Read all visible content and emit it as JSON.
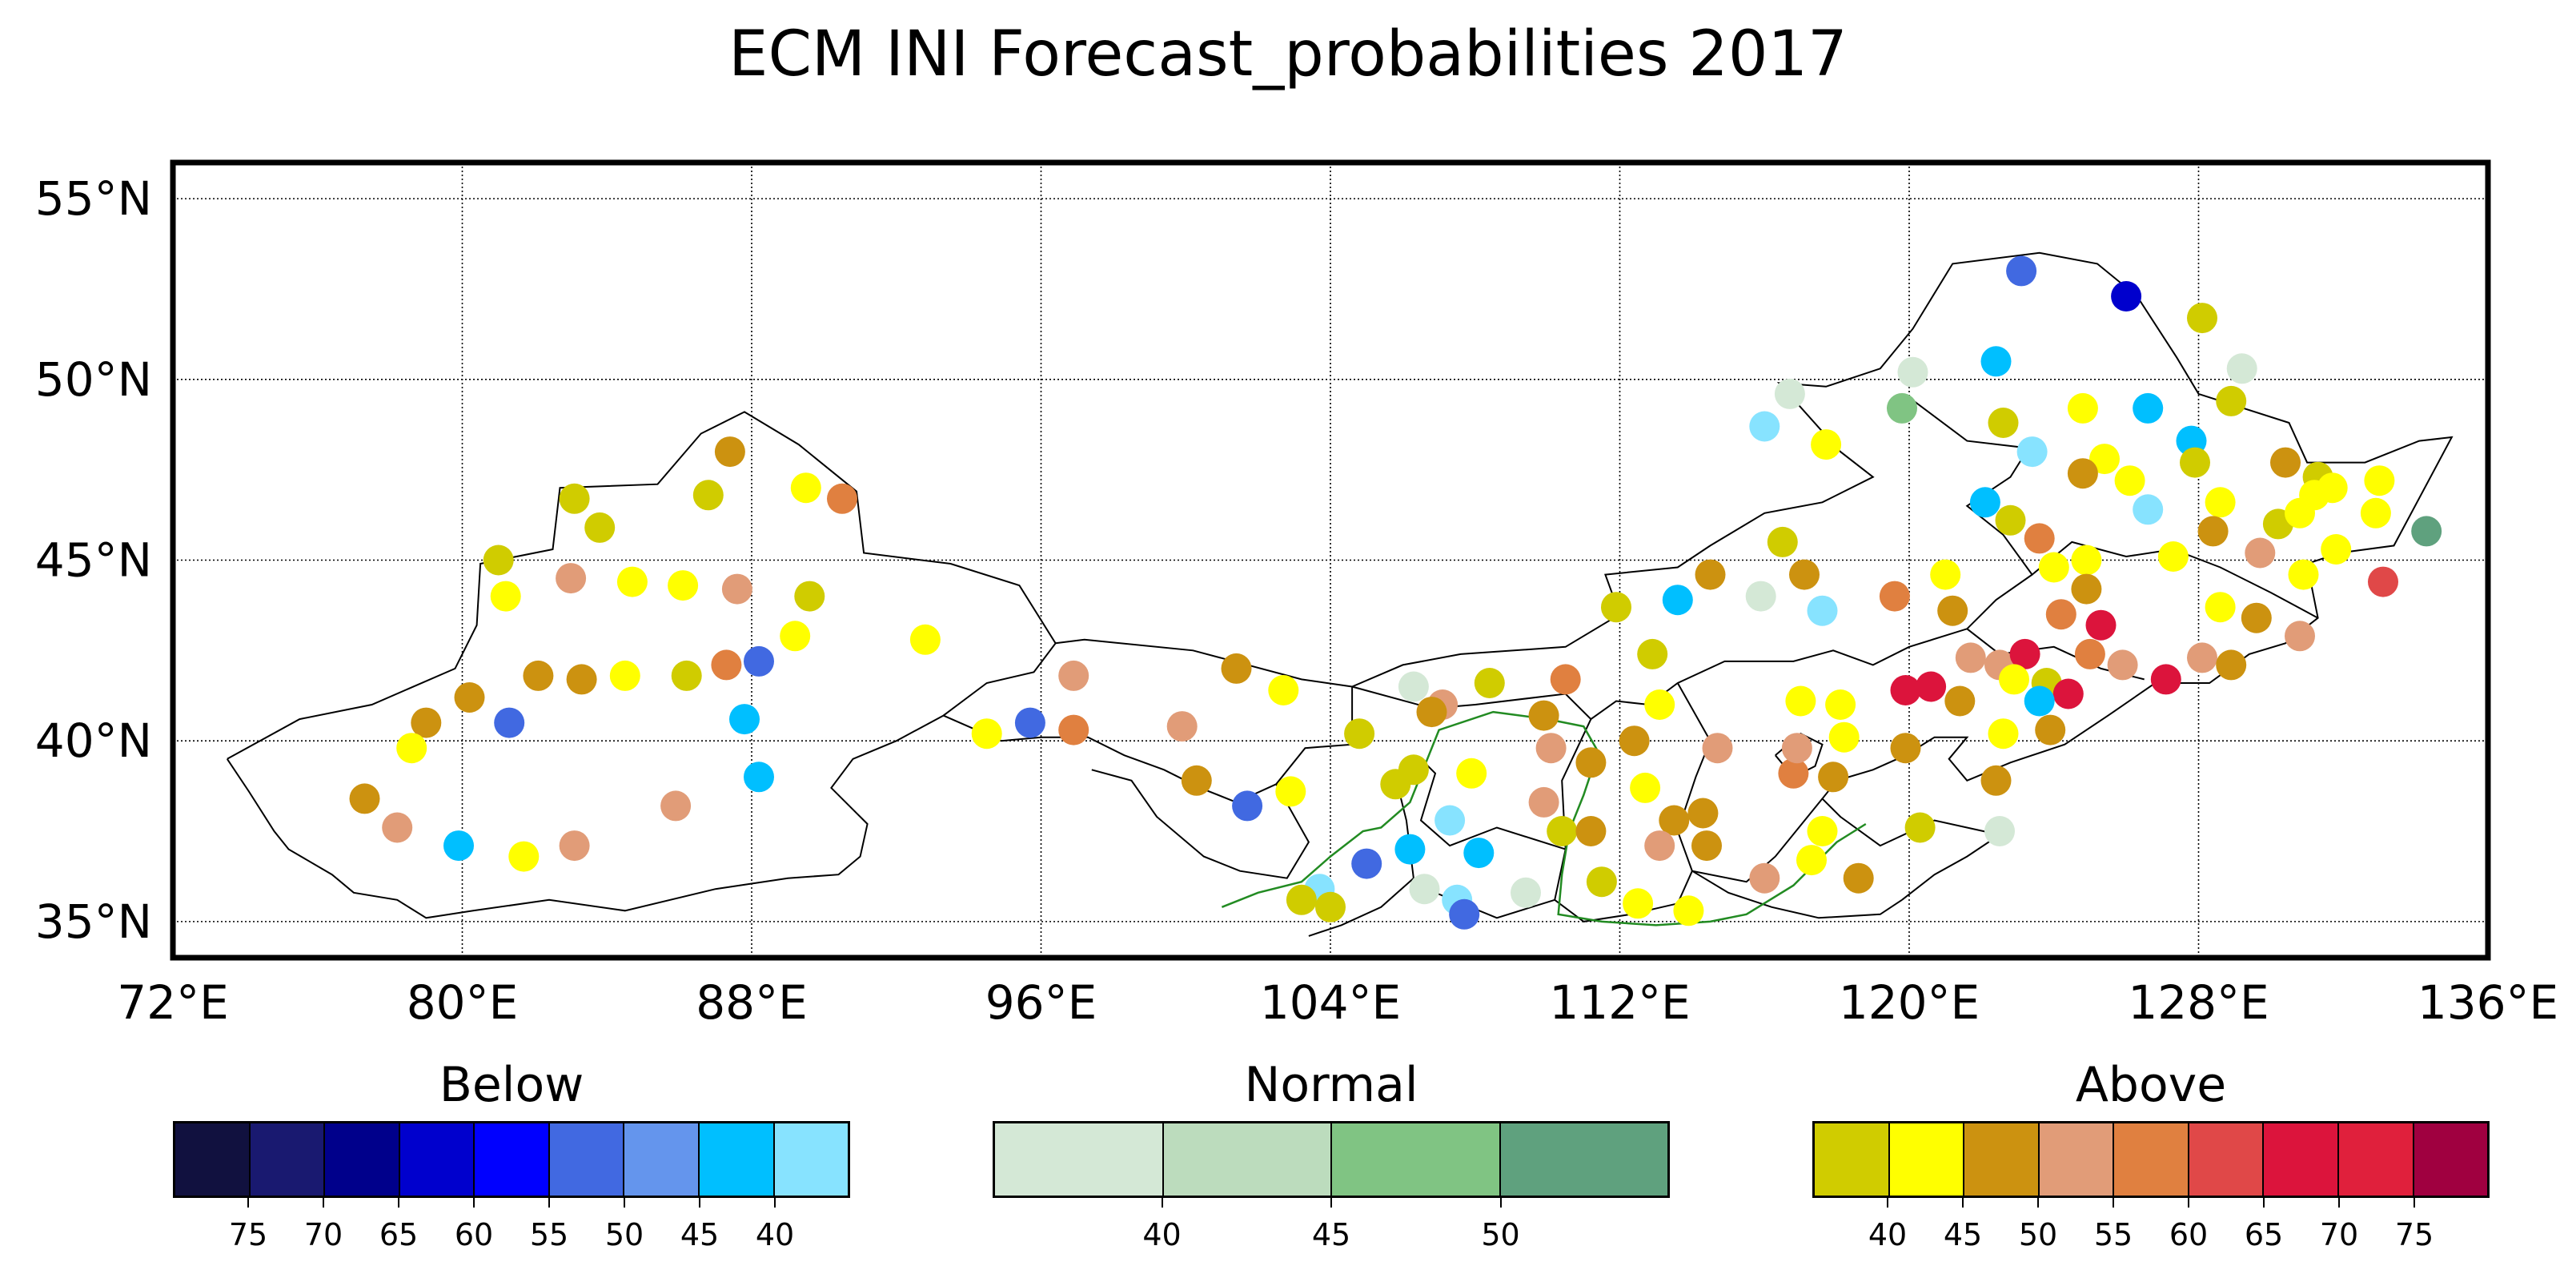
{
  "title": "ECM INI Forecast_probabilities 2017",
  "map": {
    "lon_range": [
      72,
      136
    ],
    "lat_range": [
      34,
      56
    ],
    "lon_ticks": [
      "72°E",
      "80°E",
      "88°E",
      "96°E",
      "104°E",
      "112°E",
      "120°E",
      "128°E",
      "136°E"
    ],
    "lat_ticks": [
      "35°N",
      "40°N",
      "45°N",
      "50°N",
      "55°N"
    ],
    "gridlines": true,
    "river_color": "#228b22"
  },
  "legend": {
    "below": {
      "title": "Below",
      "colors": [
        "#11113f",
        "#191970",
        "#00008b",
        "#0000cd",
        "#0000ff",
        "#4169e1",
        "#6495ed",
        "#00bfff",
        "#87e3ff"
      ],
      "ticks": [
        "75",
        "70",
        "65",
        "60",
        "55",
        "50",
        "45",
        "40"
      ]
    },
    "normal": {
      "title": "Normal",
      "colors": [
        "#d4e8d6",
        "#bcdcbd",
        "#80c483",
        "#5fa17e"
      ],
      "ticks": [
        "40",
        "45",
        "50"
      ]
    },
    "above": {
      "title": "Above",
      "colors": [
        "#d0cc00",
        "#ffff00",
        "#cc9210",
        "#e19c78",
        "#e08040",
        "#e04848",
        "#dc143c",
        "#e0203c",
        "#a00040"
      ],
      "ticks": [
        "40",
        "45",
        "50",
        "55",
        "60",
        "65",
        "70",
        "75"
      ]
    }
  },
  "stations": [
    {
      "lon": 123.1,
      "lat": 53.0,
      "c": "#4169e1"
    },
    {
      "lon": 126.0,
      "lat": 52.3,
      "c": "#0000cd"
    },
    {
      "lon": 128.1,
      "lat": 51.7,
      "c": "#d0cc00"
    },
    {
      "lon": 129.2,
      "lat": 50.3,
      "c": "#d4e8d6"
    },
    {
      "lon": 120.1,
      "lat": 50.2,
      "c": "#d4e8d6"
    },
    {
      "lon": 122.4,
      "lat": 50.5,
      "c": "#00bfff"
    },
    {
      "lon": 116.7,
      "lat": 49.6,
      "c": "#d4e8d6"
    },
    {
      "lon": 119.8,
      "lat": 49.2,
      "c": "#80c483"
    },
    {
      "lon": 124.8,
      "lat": 49.2,
      "c": "#ffff00"
    },
    {
      "lon": 126.6,
      "lat": 49.2,
      "c": "#00bfff"
    },
    {
      "lon": 128.9,
      "lat": 49.4,
      "c": "#d0cc00"
    },
    {
      "lon": 116.0,
      "lat": 48.7,
      "c": "#87e3ff"
    },
    {
      "lon": 117.7,
      "lat": 48.2,
      "c": "#ffff00"
    },
    {
      "lon": 122.6,
      "lat": 48.8,
      "c": "#d0cc00"
    },
    {
      "lon": 123.4,
      "lat": 48.0,
      "c": "#87e3ff"
    },
    {
      "lon": 125.4,
      "lat": 47.8,
      "c": "#ffff00"
    },
    {
      "lon": 127.8,
      "lat": 48.3,
      "c": "#00bfff"
    },
    {
      "lon": 130.4,
      "lat": 47.7,
      "c": "#cc9210"
    },
    {
      "lon": 124.8,
      "lat": 47.4,
      "c": "#cc9210"
    },
    {
      "lon": 126.1,
      "lat": 47.2,
      "c": "#ffff00"
    },
    {
      "lon": 131.3,
      "lat": 47.3,
      "c": "#d0cc00"
    },
    {
      "lon": 133.0,
      "lat": 47.2,
      "c": "#ffff00"
    },
    {
      "lon": 122.1,
      "lat": 46.6,
      "c": "#00bfff"
    },
    {
      "lon": 126.6,
      "lat": 46.4,
      "c": "#87e3ff"
    },
    {
      "lon": 128.6,
      "lat": 46.6,
      "c": "#ffff00"
    },
    {
      "lon": 131.2,
      "lat": 46.8,
      "c": "#ffff00"
    },
    {
      "lon": 132.9,
      "lat": 46.3,
      "c": "#ffff00"
    },
    {
      "lon": 122.8,
      "lat": 46.1,
      "c": "#d0cc00"
    },
    {
      "lon": 123.6,
      "lat": 45.6,
      "c": "#e08040"
    },
    {
      "lon": 128.4,
      "lat": 45.8,
      "c": "#cc9210"
    },
    {
      "lon": 130.2,
      "lat": 46.0,
      "c": "#d0cc00"
    },
    {
      "lon": 130.8,
      "lat": 46.3,
      "c": "#ffff00"
    },
    {
      "lon": 134.3,
      "lat": 45.8,
      "c": "#5fa17e"
    },
    {
      "lon": 124.9,
      "lat": 45.0,
      "c": "#ffff00"
    },
    {
      "lon": 127.3,
      "lat": 45.1,
      "c": "#ffff00"
    },
    {
      "lon": 129.7,
      "lat": 45.2,
      "c": "#e19c78"
    },
    {
      "lon": 131.8,
      "lat": 45.3,
      "c": "#ffff00"
    },
    {
      "lon": 121.0,
      "lat": 44.6,
      "c": "#ffff00"
    },
    {
      "lon": 130.9,
      "lat": 44.6,
      "c": "#ffff00"
    },
    {
      "lon": 133.1,
      "lat": 44.4,
      "c": "#e04848"
    },
    {
      "lon": 124.9,
      "lat": 44.2,
      "c": "#cc9210"
    },
    {
      "lon": 119.6,
      "lat": 44.0,
      "c": "#e08040"
    },
    {
      "lon": 121.2,
      "lat": 43.6,
      "c": "#cc9210"
    },
    {
      "lon": 124.2,
      "lat": 43.5,
      "c": "#e08040"
    },
    {
      "lon": 125.3,
      "lat": 43.2,
      "c": "#dc143c"
    },
    {
      "lon": 128.6,
      "lat": 43.7,
      "c": "#ffff00"
    },
    {
      "lon": 129.6,
      "lat": 43.4,
      "c": "#cc9210"
    },
    {
      "lon": 130.8,
      "lat": 42.9,
      "c": "#e19c78"
    },
    {
      "lon": 121.7,
      "lat": 42.3,
      "c": "#e19c78"
    },
    {
      "lon": 122.5,
      "lat": 42.1,
      "c": "#e19c78"
    },
    {
      "lon": 123.2,
      "lat": 42.4,
      "c": "#dc143c"
    },
    {
      "lon": 125.0,
      "lat": 42.4,
      "c": "#e08040"
    },
    {
      "lon": 125.9,
      "lat": 42.1,
      "c": "#e19c78"
    },
    {
      "lon": 127.1,
      "lat": 41.7,
      "c": "#dc143c"
    },
    {
      "lon": 128.1,
      "lat": 42.3,
      "c": "#e19c78"
    },
    {
      "lon": 128.9,
      "lat": 42.1,
      "c": "#cc9210"
    },
    {
      "lon": 119.9,
      "lat": 41.4,
      "c": "#dc143c"
    },
    {
      "lon": 120.6,
      "lat": 41.5,
      "c": "#dc143c"
    },
    {
      "lon": 121.4,
      "lat": 41.1,
      "c": "#cc9210"
    },
    {
      "lon": 122.9,
      "lat": 41.7,
      "c": "#ffff00"
    },
    {
      "lon": 123.8,
      "lat": 41.6,
      "c": "#d0cc00"
    },
    {
      "lon": 124.4,
      "lat": 41.3,
      "c": "#dc143c"
    },
    {
      "lon": 123.6,
      "lat": 41.1,
      "c": "#00bfff"
    },
    {
      "lon": 122.6,
      "lat": 40.2,
      "c": "#ffff00"
    },
    {
      "lon": 123.9,
      "lat": 40.3,
      "c": "#cc9210"
    },
    {
      "lon": 119.9,
      "lat": 39.8,
      "c": "#cc9210"
    },
    {
      "lon": 122.4,
      "lat": 38.9,
      "c": "#cc9210"
    },
    {
      "lon": 120.3,
      "lat": 37.6,
      "c": "#d0cc00"
    },
    {
      "lon": 122.5,
      "lat": 37.5,
      "c": "#d4e8d6"
    },
    {
      "lon": 116.0,
      "lat": 36.2,
      "c": "#e19c78"
    },
    {
      "lon": 117.3,
      "lat": 36.7,
      "c": "#ffff00"
    },
    {
      "lon": 118.6,
      "lat": 36.2,
      "c": "#cc9210"
    },
    {
      "lon": 117.6,
      "lat": 37.5,
      "c": "#ffff00"
    },
    {
      "lon": 116.8,
      "lat": 39.1,
      "c": "#e08040"
    },
    {
      "lon": 116.9,
      "lat": 39.8,
      "c": "#e19c78"
    },
    {
      "lon": 117.9,
      "lat": 39.0,
      "c": "#cc9210"
    },
    {
      "lon": 118.2,
      "lat": 40.1,
      "c": "#ffff00"
    },
    {
      "lon": 117.0,
      "lat": 41.1,
      "c": "#ffff00"
    },
    {
      "lon": 118.1,
      "lat": 41.0,
      "c": "#ffff00"
    },
    {
      "lon": 117.6,
      "lat": 43.6,
      "c": "#87e3ff"
    },
    {
      "lon": 115.9,
      "lat": 44.0,
      "c": "#d4e8d6"
    },
    {
      "lon": 117.1,
      "lat": 44.6,
      "c": "#cc9210"
    },
    {
      "lon": 116.5,
      "lat": 45.5,
      "c": "#d0cc00"
    },
    {
      "lon": 114.5,
      "lat": 44.6,
      "c": "#cc9210"
    },
    {
      "lon": 113.6,
      "lat": 43.9,
      "c": "#00bfff"
    },
    {
      "lon": 111.9,
      "lat": 43.7,
      "c": "#d0cc00"
    },
    {
      "lon": 112.9,
      "lat": 42.4,
      "c": "#d0cc00"
    },
    {
      "lon": 113.1,
      "lat": 41.0,
      "c": "#ffff00"
    },
    {
      "lon": 112.4,
      "lat": 40.0,
      "c": "#cc9210"
    },
    {
      "lon": 114.7,
      "lat": 39.8,
      "c": "#e19c78"
    },
    {
      "lon": 110.5,
      "lat": 41.7,
      "c": "#e08040"
    },
    {
      "lon": 109.9,
      "lat": 40.7,
      "c": "#cc9210"
    },
    {
      "lon": 110.1,
      "lat": 39.8,
      "c": "#e19c78"
    },
    {
      "lon": 111.2,
      "lat": 39.4,
      "c": "#cc9210"
    },
    {
      "lon": 112.7,
      "lat": 38.7,
      "c": "#ffff00"
    },
    {
      "lon": 109.9,
      "lat": 38.3,
      "c": "#e19c78"
    },
    {
      "lon": 110.4,
      "lat": 37.5,
      "c": "#d0cc00"
    },
    {
      "lon": 111.2,
      "lat": 37.5,
      "c": "#cc9210"
    },
    {
      "lon": 113.5,
      "lat": 37.8,
      "c": "#cc9210"
    },
    {
      "lon": 114.3,
      "lat": 38.0,
      "c": "#cc9210"
    },
    {
      "lon": 113.1,
      "lat": 37.1,
      "c": "#e19c78"
    },
    {
      "lon": 114.4,
      "lat": 37.1,
      "c": "#cc9210"
    },
    {
      "lon": 111.5,
      "lat": 36.1,
      "c": "#d0cc00"
    },
    {
      "lon": 112.5,
      "lat": 35.5,
      "c": "#ffff00"
    },
    {
      "lon": 113.9,
      "lat": 35.3,
      "c": "#ffff00"
    },
    {
      "lon": 109.4,
      "lat": 35.8,
      "c": "#d4e8d6"
    },
    {
      "lon": 108.4,
      "lat": 41.6,
      "c": "#d0cc00"
    },
    {
      "lon": 107.1,
      "lat": 41.0,
      "c": "#e19c78"
    },
    {
      "lon": 106.8,
      "lat": 40.8,
      "c": "#cc9210"
    },
    {
      "lon": 106.3,
      "lat": 41.5,
      "c": "#d4e8d6"
    },
    {
      "lon": 104.8,
      "lat": 40.2,
      "c": "#d0cc00"
    },
    {
      "lon": 106.3,
      "lat": 39.2,
      "c": "#d0cc00"
    },
    {
      "lon": 105.8,
      "lat": 38.8,
      "c": "#d0cc00"
    },
    {
      "lon": 107.9,
      "lat": 39.1,
      "c": "#ffff00"
    },
    {
      "lon": 107.3,
      "lat": 37.8,
      "c": "#87e3ff"
    },
    {
      "lon": 108.1,
      "lat": 36.9,
      "c": "#00bfff"
    },
    {
      "lon": 106.2,
      "lat": 37.0,
      "c": "#00bfff"
    },
    {
      "lon": 105.0,
      "lat": 36.6,
      "c": "#4169e1"
    },
    {
      "lon": 106.6,
      "lat": 35.9,
      "c": "#d4e8d6"
    },
    {
      "lon": 103.7,
      "lat": 35.9,
      "c": "#87e3ff"
    },
    {
      "lon": 103.2,
      "lat": 35.6,
      "c": "#d0cc00"
    },
    {
      "lon": 104.0,
      "lat": 35.4,
      "c": "#d0cc00"
    },
    {
      "lon": 107.5,
      "lat": 35.6,
      "c": "#87e3ff"
    },
    {
      "lon": 107.7,
      "lat": 35.2,
      "c": "#4169e1"
    },
    {
      "lon": 102.9,
      "lat": 38.6,
      "c": "#ffff00"
    },
    {
      "lon": 101.7,
      "lat": 38.2,
      "c": "#4169e1"
    },
    {
      "lon": 100.3,
      "lat": 38.9,
      "c": "#cc9210"
    },
    {
      "lon": 101.4,
      "lat": 42.0,
      "c": "#cc9210"
    },
    {
      "lon": 102.7,
      "lat": 41.4,
      "c": "#ffff00"
    },
    {
      "lon": 99.9,
      "lat": 40.4,
      "c": "#e19c78"
    },
    {
      "lon": 96.9,
      "lat": 41.8,
      "c": "#e19c78"
    },
    {
      "lon": 96.9,
      "lat": 40.3,
      "c": "#e08040"
    },
    {
      "lon": 95.7,
      "lat": 40.5,
      "c": "#4169e1"
    },
    {
      "lon": 94.5,
      "lat": 40.2,
      "c": "#ffff00"
    },
    {
      "lon": 92.8,
      "lat": 42.8,
      "c": "#ffff00"
    },
    {
      "lon": 89.5,
      "lat": 47.0,
      "c": "#ffff00"
    },
    {
      "lon": 90.5,
      "lat": 46.7,
      "c": "#e08040"
    },
    {
      "lon": 87.4,
      "lat": 48.0,
      "c": "#cc9210"
    },
    {
      "lon": 86.8,
      "lat": 46.8,
      "c": "#d0cc00"
    },
    {
      "lon": 83.1,
      "lat": 46.7,
      "c": "#d0cc00"
    },
    {
      "lon": 83.8,
      "lat": 45.9,
      "c": "#d0cc00"
    },
    {
      "lon": 81.0,
      "lat": 45.0,
      "c": "#d0cc00"
    },
    {
      "lon": 81.2,
      "lat": 44.0,
      "c": "#ffff00"
    },
    {
      "lon": 83.0,
      "lat": 44.5,
      "c": "#e19c78"
    },
    {
      "lon": 84.7,
      "lat": 44.4,
      "c": "#ffff00"
    },
    {
      "lon": 86.1,
      "lat": 44.3,
      "c": "#ffff00"
    },
    {
      "lon": 87.6,
      "lat": 44.2,
      "c": "#e19c78"
    },
    {
      "lon": 89.6,
      "lat": 44.0,
      "c": "#d0cc00"
    },
    {
      "lon": 89.2,
      "lat": 42.9,
      "c": "#ffff00"
    },
    {
      "lon": 88.2,
      "lat": 42.2,
      "c": "#4169e1"
    },
    {
      "lon": 87.3,
      "lat": 42.1,
      "c": "#e08040"
    },
    {
      "lon": 86.2,
      "lat": 41.8,
      "c": "#d0cc00"
    },
    {
      "lon": 84.5,
      "lat": 41.8,
      "c": "#ffff00"
    },
    {
      "lon": 83.3,
      "lat": 41.7,
      "c": "#cc9210"
    },
    {
      "lon": 82.1,
      "lat": 41.8,
      "c": "#cc9210"
    },
    {
      "lon": 80.2,
      "lat": 41.2,
      "c": "#cc9210"
    },
    {
      "lon": 81.3,
      "lat": 40.5,
      "c": "#4169e1"
    },
    {
      "lon": 79.0,
      "lat": 40.5,
      "c": "#cc9210"
    },
    {
      "lon": 78.6,
      "lat": 39.8,
      "c": "#ffff00"
    },
    {
      "lon": 77.3,
      "lat": 38.4,
      "c": "#cc9210"
    },
    {
      "lon": 78.2,
      "lat": 37.6,
      "c": "#e19c78"
    },
    {
      "lon": 79.9,
      "lat": 37.1,
      "c": "#00bfff"
    },
    {
      "lon": 81.7,
      "lat": 36.8,
      "c": "#ffff00"
    },
    {
      "lon": 83.1,
      "lat": 37.1,
      "c": "#e19c78"
    },
    {
      "lon": 85.9,
      "lat": 38.2,
      "c": "#e19c78"
    },
    {
      "lon": 87.8,
      "lat": 40.6,
      "c": "#00bfff"
    },
    {
      "lon": 88.2,
      "lat": 39.0,
      "c": "#00bfff"
    },
    {
      "lon": 124.0,
      "lat": 44.8,
      "c": "#ffff00"
    },
    {
      "lon": 127.9,
      "lat": 47.7,
      "c": "#d0cc00"
    },
    {
      "lon": 131.7,
      "lat": 47.0,
      "c": "#ffff00"
    }
  ]
}
